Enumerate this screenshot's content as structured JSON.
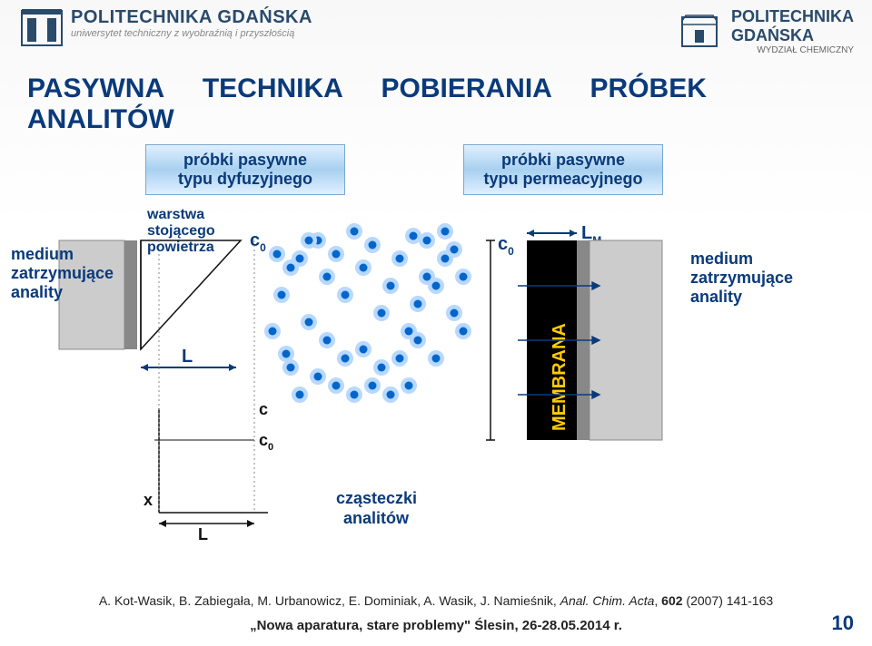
{
  "header": {
    "left": {
      "name": "POLITECHNIKA GDAŃSKA",
      "sub": "uniwersytet techniczny z wyobraźnią i przyszłością"
    },
    "right": {
      "name": "POLITECHNIKA",
      "name2": "GDAŃSKA",
      "sub": "WYDZIAŁ CHEMICZNY"
    }
  },
  "title_words": [
    "PASYWNA",
    "TECHNIKA",
    "POBIERANIA",
    "PRÓBEK",
    "ANALITÓW"
  ],
  "box_left_l1": "próbki pasywne",
  "box_left_l2": "typu dyfuzyjnego",
  "box_right_l1": "próbki pasywne",
  "box_right_l2": "typu permeacyjnego",
  "labels": {
    "medium_left": "medium zatrzymujące anality",
    "warstwa": "warstwa stojącego powietrza",
    "c0": "c",
    "c0_sub": "0",
    "L": "L",
    "LM": "L",
    "LM_sub": "M",
    "c_axis": "c",
    "x_axis": "x",
    "membrana": "MEMBRANA",
    "medium_right": "medium zatrzymujące anality",
    "czasteczki": "cząsteczki analitów"
  },
  "citation": "A. Kot-Wasik, B. Zabiegała, M. Urbanowicz, E. Dominiak, A. Wasik, J. Namieśnik, Anal. Chim. Acta, 602 (2007) 141-163",
  "citation_bold_part": "602",
  "conference": "„Nowa aparatura, stare problemy\" Ślesin, 26-28.05.2014 r.",
  "page": "10",
  "colors": {
    "title": "#0a3a7a",
    "dot_inner": "#0066cc",
    "dot_outer": "#b8d8ff",
    "membrane": "#000000",
    "membrane_text": "#ffcc00",
    "blue_text": "#0a3a7a"
  },
  "dots": [
    [
      330,
      60
    ],
    [
      350,
      40
    ],
    [
      360,
      80
    ],
    [
      370,
      55
    ],
    [
      380,
      100
    ],
    [
      390,
      30
    ],
    [
      400,
      70
    ],
    [
      410,
      45
    ],
    [
      420,
      120
    ],
    [
      430,
      90
    ],
    [
      440,
      60
    ],
    [
      450,
      140
    ],
    [
      460,
      110
    ],
    [
      470,
      80
    ],
    [
      340,
      130
    ],
    [
      360,
      150
    ],
    [
      380,
      170
    ],
    [
      400,
      160
    ],
    [
      420,
      180
    ],
    [
      440,
      170
    ],
    [
      460,
      150
    ],
    [
      310,
      100
    ],
    [
      320,
      70
    ],
    [
      300,
      140
    ],
    [
      480,
      90
    ],
    [
      490,
      60
    ],
    [
      500,
      120
    ],
    [
      510,
      140
    ],
    [
      470,
      40
    ],
    [
      490,
      30
    ],
    [
      350,
      190
    ],
    [
      370,
      200
    ],
    [
      390,
      210
    ],
    [
      410,
      200
    ],
    [
      430,
      210
    ],
    [
      450,
      200
    ],
    [
      320,
      180
    ],
    [
      340,
      40
    ],
    [
      480,
      170
    ],
    [
      500,
      50
    ],
    [
      510,
      80
    ],
    [
      330,
      210
    ],
    [
      305,
      55
    ],
    [
      315,
      165
    ],
    [
      455,
      35
    ]
  ]
}
